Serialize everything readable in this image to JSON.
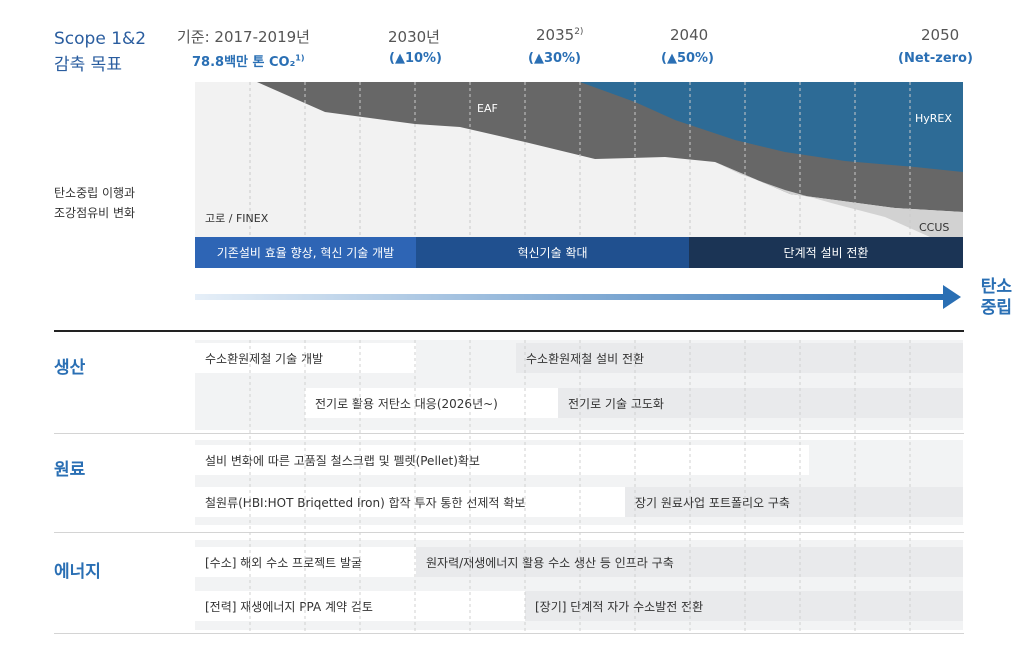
{
  "header": {
    "scope_line1": "Scope 1&2",
    "scope_line2": "감축 목표",
    "baseline_label": "기준: 2017-2019년",
    "baseline_value": "78.8백만 톤 CO₂",
    "baseline_note": "1)",
    "milestones": [
      {
        "year": "2030년",
        "note": "",
        "target": "(▲10%)"
      },
      {
        "year": "2035",
        "note": "2)",
        "target": "(▲30%)"
      },
      {
        "year": "2040",
        "note": "",
        "target": "(▲50%)"
      },
      {
        "year": "2050",
        "note": "",
        "target": "(Net-zero)"
      }
    ]
  },
  "chart": {
    "side_label_line1": "탄소중립 이행과",
    "side_label_line2": "조강점유비 변화",
    "areas": {
      "blast_furnace": "고로 / FINEX",
      "eaf": "EAF",
      "hyrex": "HyREX",
      "ccus": "CCUS"
    },
    "colors": {
      "hyrex": "#2d6b96",
      "eaf": "#676767",
      "furnace": "#eeeeee",
      "ccus": "#d2d2d2"
    }
  },
  "phases": [
    {
      "label": "기존설비 효율 향상, 혁신 기술 개발",
      "color": "#2e65b5"
    },
    {
      "label": "혁신기술 확대",
      "color": "#20508f"
    },
    {
      "label": "단계적 설비 전환",
      "color": "#1b3455"
    }
  ],
  "carbon_neutral_line1": "탄소",
  "carbon_neutral_line2": "중립",
  "sections": [
    {
      "title": "생산",
      "rows": [
        {
          "left": "수소환원제철 기술 개발",
          "right": "수소환원제철 설비 전환"
        },
        {
          "left": "전기로 활용 저탄소 대응(2026년~)",
          "right": "전기로 기술 고도화"
        }
      ]
    },
    {
      "title": "원료",
      "rows": [
        {
          "left": "설비 변화에 따른 고품질 철스크랩 및 펠렛(Pellet)확보",
          "right": ""
        },
        {
          "left": "철원류(HBI:HOT Briqetted Iron) 합작 투자 통한 선제적 확보",
          "right": "장기 원료사업 포트폴리오 구축"
        }
      ]
    },
    {
      "title": "에너지",
      "rows": [
        {
          "left": "[수소] 해외 수소 프로젝트 발굴",
          "right": "원자력/재생에너지 활용 수소 생산 등 인프라 구축"
        },
        {
          "left": "[전력] 재생에너지 PPA 계약 검토",
          "right": "[장기] 단계적 자가 수소발전 전환"
        }
      ]
    }
  ]
}
